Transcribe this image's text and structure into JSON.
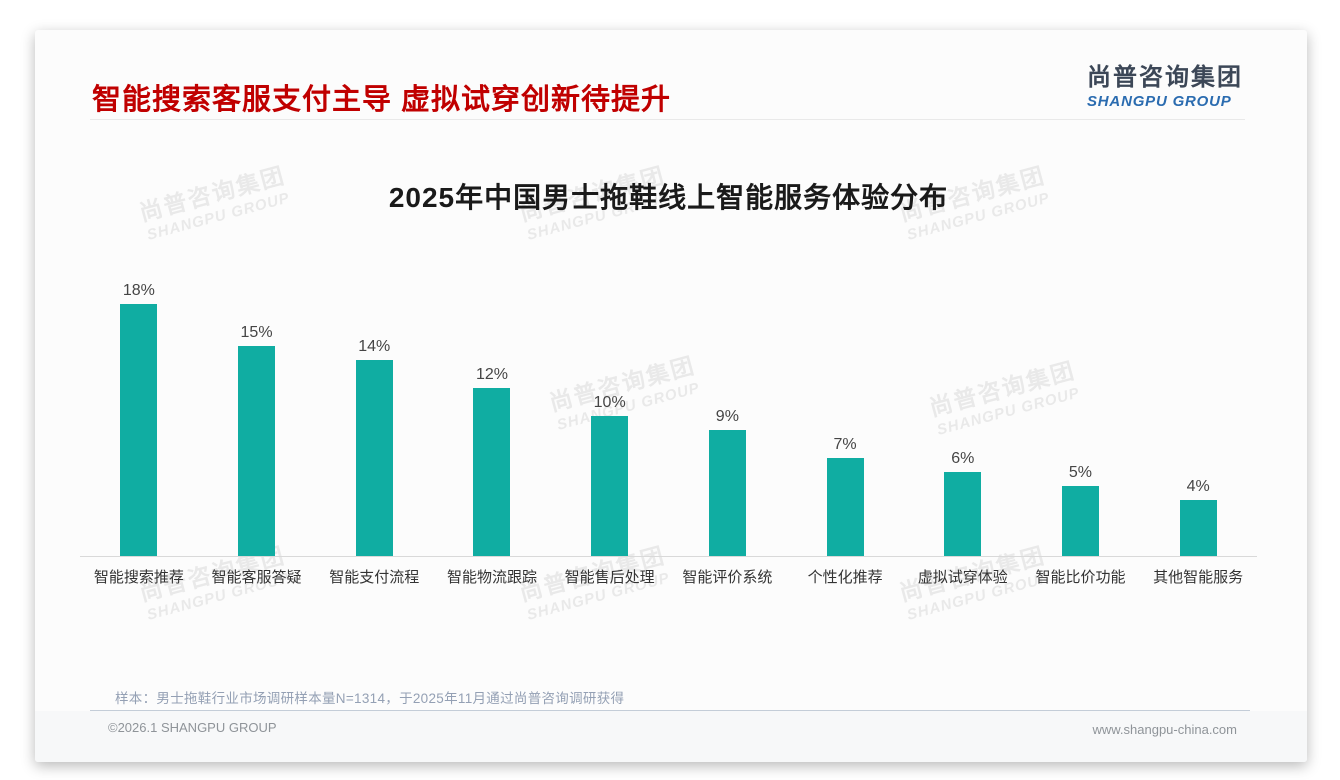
{
  "page": {
    "main_title": "智能搜索客服支付主导 虚拟试穿创新待提升",
    "logo": {
      "cn": "尚普咨询集团",
      "en": "SHANGPU GROUP"
    },
    "watermark": {
      "cn": "尚普咨询集团",
      "en": "SHANGPU GROUP"
    },
    "note": "样本：男士拖鞋行业市场调研样本量N=1314，于2025年11月通过尚普咨询调研获得",
    "footer": {
      "copyright": "©2026.1 SHANGPU GROUP",
      "website": "www.shangpu-china.com"
    }
  },
  "colors": {
    "title_red": "#c00000",
    "bar_teal": "#10ada2",
    "logo_blue": "#2b6cb0",
    "axis_gray": "#d9d9d9"
  },
  "chart_data": {
    "type": "bar",
    "title": "2025年中国男士拖鞋线上智能服务体验分布",
    "categories": [
      "智能搜索推荐",
      "智能客服答疑",
      "智能支付流程",
      "智能物流跟踪",
      "智能售后处理",
      "智能评价系统",
      "个性化推荐",
      "虚拟试穿体验",
      "智能比价功能",
      "其他智能服务"
    ],
    "values": [
      18,
      15,
      14,
      12,
      10,
      9,
      7,
      6,
      5,
      4
    ],
    "unit": "%",
    "xlabel": "",
    "ylabel": "",
    "ylim": [
      0,
      20
    ],
    "grid": false,
    "legend": "none",
    "bar_color": "#10ada2",
    "value_labels": true
  }
}
